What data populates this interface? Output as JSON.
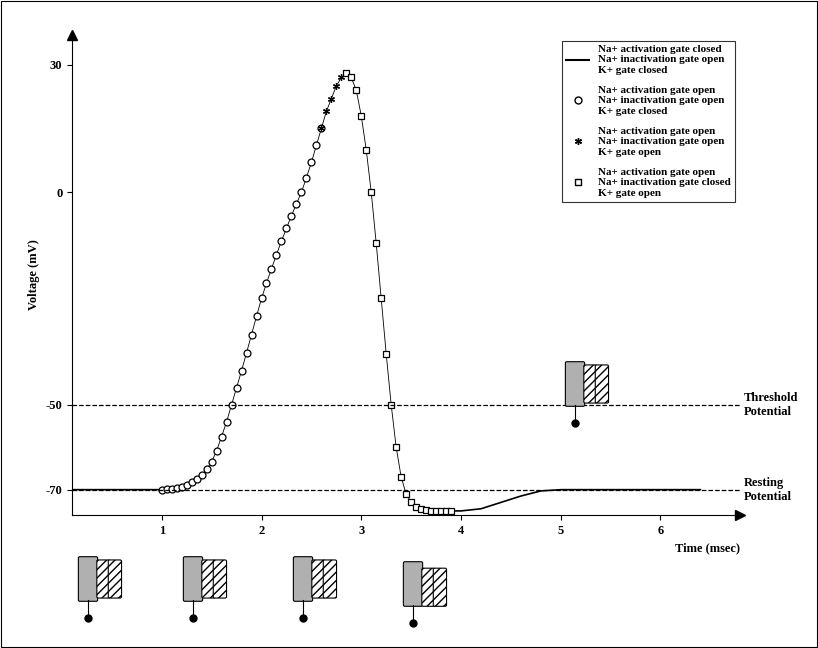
{
  "chart_data": {
    "type": "line",
    "y_label": "Voltage (mV)",
    "x_label": "Time (msec)",
    "xlim": [
      0.1,
      6.8
    ],
    "ylim": [
      -76,
      37
    ],
    "xticks": [
      1,
      2,
      3,
      4,
      5,
      6
    ],
    "yticks": [
      -70,
      -50,
      0,
      30
    ],
    "legend": "upper right",
    "color": "#000000",
    "reference_lines": [
      {
        "value": -50,
        "label": "Threshold\nPotential",
        "line_style": "dashed"
      },
      {
        "value": -70,
        "label": "Resting\nPotential",
        "line_style": "dashed"
      }
    ],
    "series": [
      {
        "name": "Na+ activation gate closed\nNa+ inactivation gate open\nK+ gate closed",
        "marker": "none",
        "line_style": "solid",
        "x": [
          0.1,
          0.5,
          1.0,
          2.5,
          3.9,
          4.0,
          4.2,
          4.4,
          4.6,
          4.8,
          5.0,
          6.4
        ],
        "values": [
          -70,
          -70,
          -70,
          null,
          -75,
          -75,
          -74.5,
          -73,
          -71.5,
          -70.3,
          -70,
          -70
        ]
      },
      {
        "name": "Na+ activation gate open\nNa+ inactivation gate open\nK+ gate closed",
        "marker": "circle",
        "line_style": "solid",
        "x": [
          1.0,
          1.05,
          1.1,
          1.15,
          1.2,
          1.25,
          1.3,
          1.35,
          1.4,
          1.45,
          1.5,
          1.55,
          1.6,
          1.65,
          1.7,
          1.75,
          1.8,
          1.85,
          1.9,
          1.95,
          2.0,
          2.05,
          2.1,
          2.15,
          2.2,
          2.25,
          2.3,
          2.35,
          2.4,
          2.45,
          2.5,
          2.55,
          2.6
        ],
        "values": [
          -70,
          -69.9,
          -69.8,
          -69.6,
          -69.3,
          -68.9,
          -68.3,
          -67.5,
          -66.5,
          -65.2,
          -63.5,
          -60.8,
          -57.5,
          -54,
          -50,
          -46,
          -42,
          -37.8,
          -33.5,
          -29.2,
          -25,
          -21.4,
          -18,
          -14.7,
          -11.5,
          -8.5,
          -5.5,
          -2.8,
          0,
          3.4,
          7,
          11,
          15
        ]
      },
      {
        "name": "Na+ activation gate open\nNa+ inactivation gate open\nK+ gate open",
        "marker": "asterisk",
        "line_style": "solid",
        "x": [
          2.6,
          2.65,
          2.7,
          2.75,
          2.8,
          2.85
        ],
        "values": [
          15,
          19,
          22,
          25,
          27,
          28
        ]
      },
      {
        "name": "Na+ activation gate open\nNa+ inactivation gate closed\nK+ gate open",
        "marker": "square",
        "line_style": "solid",
        "x": [
          2.85,
          2.9,
          2.95,
          3.0,
          3.05,
          3.1,
          3.15,
          3.2,
          3.25,
          3.3,
          3.35,
          3.4,
          3.45,
          3.5,
          3.55,
          3.6,
          3.65,
          3.7,
          3.75,
          3.8,
          3.85,
          3.9
        ],
        "values": [
          28,
          27,
          24,
          18,
          10,
          0,
          -12,
          -25,
          -38,
          -50,
          -60,
          -67,
          -71,
          -73,
          -74,
          -74.5,
          -74.8,
          -75,
          -75,
          -75,
          -75,
          -75
        ]
      }
    ]
  }
}
